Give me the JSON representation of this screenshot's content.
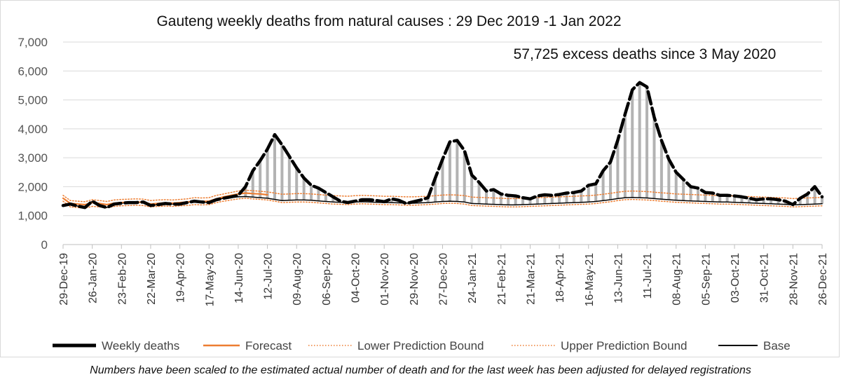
{
  "chart_data": {
    "type": "line",
    "title": "Gauteng weekly deaths from natural causes : 29 Dec 2019 -1 Jan 2022",
    "annotation": "57,725 excess deaths since 3 May 2020",
    "xlabel": "",
    "ylabel": "",
    "ylim": [
      0,
      7000
    ],
    "yticks": [
      "7,000",
      "6,000",
      "5,000",
      "4,000",
      "3,000",
      "2,000",
      "1,000",
      "0"
    ],
    "ytick_values": [
      7000,
      6000,
      5000,
      4000,
      3000,
      2000,
      1000,
      0
    ],
    "x_tick_labels": [
      "29-Dec-19",
      "26-Jan-20",
      "23-Feb-20",
      "22-Mar-20",
      "19-Apr-20",
      "17-May-20",
      "14-Jun-20",
      "12-Jul-20",
      "09-Aug-20",
      "06-Sep-20",
      "04-Oct-20",
      "01-Nov-20",
      "29-Nov-20",
      "27-Dec-20",
      "24-Jan-21",
      "21-Feb-21",
      "21-Mar-21",
      "18-Apr-21",
      "16-May-21",
      "13-Jun-21",
      "11-Jul-21",
      "08-Aug-21",
      "05-Sep-21",
      "03-Oct-21",
      "31-Oct-21",
      "28-Nov-21",
      "26-Dec-21"
    ],
    "x_tick_week_index": [
      0,
      4,
      8,
      12,
      16,
      20,
      24,
      28,
      32,
      36,
      40,
      44,
      48,
      52,
      56,
      60,
      64,
      68,
      72,
      76,
      80,
      84,
      88,
      92,
      96,
      100,
      104
    ],
    "excess_fill": "vertical lines between Weekly deaths and Base from 3 May 2020",
    "grid": "horizontal",
    "legend_position": "bottom",
    "series": [
      {
        "name": "Weekly deaths",
        "color": "#000000",
        "style": "thick solid",
        "values": [
          1350,
          1400,
          1330,
          1280,
          1500,
          1350,
          1280,
          1400,
          1430,
          1450,
          1450,
          1470,
          1350,
          1380,
          1420,
          1400,
          1400,
          1450,
          1500,
          1470,
          1450,
          1550,
          1600,
          1650,
          1700,
          2000,
          2550,
          2900,
          3300,
          3800,
          3450,
          3050,
          2650,
          2300,
          2050,
          1950,
          1800,
          1650,
          1500,
          1450,
          1500,
          1550,
          1550,
          1520,
          1480,
          1580,
          1530,
          1420,
          1480,
          1540,
          1620,
          2300,
          2950,
          3550,
          3600,
          3250,
          2400,
          2150,
          1850,
          1900,
          1750,
          1700,
          1680,
          1620,
          1580,
          1680,
          1720,
          1700,
          1730,
          1780,
          1800,
          1850,
          2050,
          2100,
          2550,
          2850,
          3600,
          4500,
          5350,
          5600,
          5450,
          4400,
          3600,
          2950,
          2500,
          2250,
          2000,
          1950,
          1800,
          1780,
          1700,
          1700,
          1680,
          1650,
          1600,
          1550,
          1580,
          1580,
          1550,
          1500,
          1380,
          1600,
          1750,
          2000,
          1650
        ]
      },
      {
        "name": "Forecast",
        "color": "#ed7d31",
        "style": "solid",
        "values": [
          1600,
          1420,
          1400,
          1380,
          1450,
          1420,
          1380,
          1430,
          1450,
          1470,
          1470,
          1460,
          1400,
          1420,
          1440,
          1430,
          1450,
          1470,
          1500,
          1490,
          1500,
          1580,
          1650,
          1700,
          1750,
          1780,
          1760,
          1750,
          1720,
          null,
          null,
          null,
          null,
          null,
          null,
          null,
          null,
          null,
          null,
          null,
          null,
          null,
          null,
          null,
          null,
          null,
          null,
          null,
          null,
          null,
          null,
          null,
          null,
          null,
          null,
          null,
          null,
          null,
          null,
          null,
          null,
          null,
          null,
          null,
          null,
          null,
          null,
          null,
          null,
          null,
          null,
          null,
          null,
          null,
          null,
          null,
          null,
          null,
          null,
          null,
          null,
          null,
          null,
          null,
          null,
          null,
          null,
          null,
          null,
          null,
          null,
          null,
          null,
          null,
          null,
          null,
          null,
          null,
          null,
          null,
          null,
          null,
          null,
          null,
          null
        ]
      },
      {
        "name": "Lower Prediction Bound",
        "color": "#ed7d31",
        "style": "dotted",
        "values": [
          1500,
          1300,
          1280,
          1260,
          1320,
          1300,
          1270,
          1320,
          1340,
          1350,
          1360,
          1350,
          1300,
          1320,
          1330,
          1320,
          1340,
          1350,
          1380,
          1370,
          1380,
          1450,
          1500,
          1540,
          1580,
          1600,
          1580,
          1560,
          1540,
          1500,
          1450,
          1460,
          1470,
          1470,
          1460,
          1440,
          1420,
          1400,
          1390,
          1380,
          1400,
          1410,
          1400,
          1390,
          1380,
          1380,
          1370,
          1360,
          1360,
          1370,
          1380,
          1400,
          1420,
          1430,
          1420,
          1400,
          1350,
          1340,
          1330,
          1320,
          1310,
          1300,
          1300,
          1310,
          1320,
          1330,
          1340,
          1350,
          1360,
          1370,
          1380,
          1390,
          1400,
          1420,
          1450,
          1480,
          1520,
          1550,
          1560,
          1550,
          1540,
          1520,
          1500,
          1480,
          1460,
          1450,
          1440,
          1430,
          1420,
          1410,
          1400,
          1400,
          1390,
          1380,
          1370,
          1360,
          1350,
          1340,
          1330,
          1320,
          1300,
          1310,
          1320,
          1330,
          1340
        ]
      },
      {
        "name": "Upper Prediction Bound",
        "color": "#ed7d31",
        "style": "dotted",
        "values": [
          1700,
          1520,
          1500,
          1480,
          1550,
          1520,
          1490,
          1540,
          1560,
          1570,
          1580,
          1570,
          1520,
          1540,
          1550,
          1540,
          1560,
          1580,
          1620,
          1610,
          1620,
          1700,
          1750,
          1800,
          1850,
          1880,
          1860,
          1840,
          1820,
          1780,
          1740,
          1750,
          1760,
          1760,
          1750,
          1730,
          1710,
          1690,
          1680,
          1670,
          1690,
          1700,
          1690,
          1680,
          1670,
          1670,
          1660,
          1650,
          1650,
          1660,
          1670,
          1690,
          1710,
          1720,
          1710,
          1690,
          1640,
          1630,
          1620,
          1610,
          1600,
          1590,
          1590,
          1600,
          1610,
          1620,
          1630,
          1640,
          1650,
          1660,
          1670,
          1680,
          1690,
          1710,
          1740,
          1770,
          1810,
          1840,
          1850,
          1840,
          1830,
          1810,
          1790,
          1770,
          1750,
          1740,
          1730,
          1720,
          1710,
          1700,
          1690,
          1690,
          1680,
          1670,
          1660,
          1650,
          1640,
          1630,
          1620,
          1610,
          1590,
          1600,
          1610,
          1620,
          1630
        ]
      },
      {
        "name": "Base",
        "color": "#000000",
        "style": "thin solid",
        "values": [
          1350,
          1400,
          1330,
          1280,
          1500,
          1350,
          1280,
          1400,
          1430,
          1450,
          1450,
          1470,
          1350,
          1380,
          1420,
          1400,
          1400,
          1450,
          1500,
          1470,
          1450,
          1550,
          1600,
          1620,
          1650,
          1660,
          1640,
          1620,
          1600,
          1560,
          1520,
          1530,
          1540,
          1540,
          1530,
          1510,
          1490,
          1470,
          1460,
          1450,
          1470,
          1480,
          1470,
          1460,
          1450,
          1450,
          1440,
          1430,
          1430,
          1440,
          1450,
          1470,
          1490,
          1500,
          1490,
          1470,
          1420,
          1410,
          1400,
          1390,
          1380,
          1370,
          1370,
          1380,
          1390,
          1400,
          1410,
          1420,
          1430,
          1440,
          1450,
          1460,
          1470,
          1490,
          1520,
          1550,
          1590,
          1620,
          1630,
          1620,
          1610,
          1590,
          1570,
          1550,
          1530,
          1520,
          1510,
          1500,
          1490,
          1480,
          1470,
          1470,
          1460,
          1450,
          1440,
          1430,
          1420,
          1410,
          1400,
          1390,
          1370,
          1380,
          1390,
          1400,
          1410
        ]
      }
    ]
  },
  "footnote": "Numbers have been scaled to the estimated actual number of death and for the last week has been adjusted for delayed registrations"
}
